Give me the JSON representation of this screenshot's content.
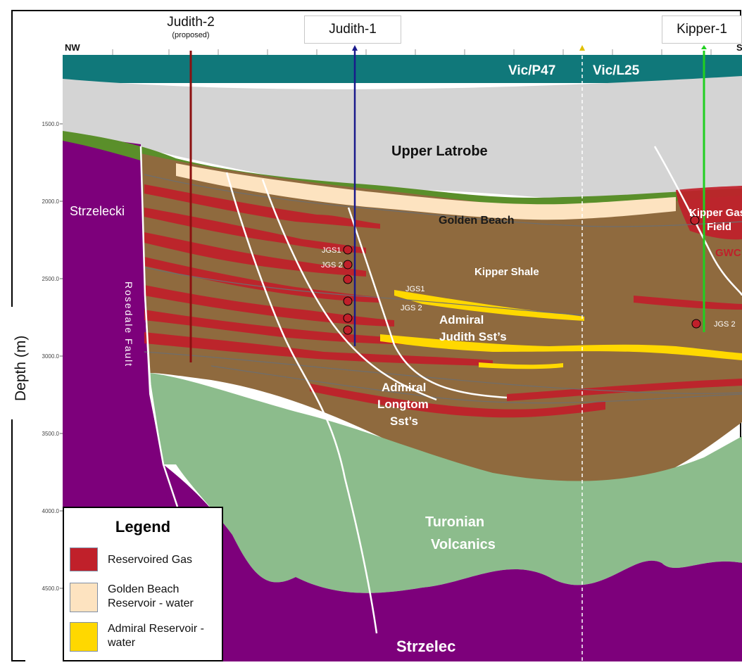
{
  "wells": {
    "judith2": {
      "name": "Judith-2",
      "note": "(proposed)"
    },
    "judith1": {
      "name": "Judith-1"
    },
    "kipper1": {
      "name": "Kipper-1"
    }
  },
  "orientation": {
    "left": "NW",
    "right": "S"
  },
  "axis": {
    "label": "Depth (m)",
    "ticks": [
      "1500.0",
      "2000.0",
      "2500.0",
      "3000.0",
      "3500.0",
      "4000.0",
      "4500.0"
    ]
  },
  "permits": {
    "left": "Vic/P47",
    "right": "Vic/L25"
  },
  "units": {
    "upper_latrobe": "Upper Latrobe",
    "golden_beach": "Golden Beach",
    "kipper_shale": "Kipper Shale",
    "admiral_judith": [
      "Admiral",
      "Judith Sst’s"
    ],
    "admiral_longtom": [
      "Admiral",
      "Longtom",
      "Sst’s"
    ],
    "turonian": [
      "Turonian",
      "Volcanics"
    ],
    "strzelecki_left": "Strzelecki",
    "strzelecki_bottom": "Strzelec",
    "rosedale_fault": "Rosedale Fault",
    "kipper_field": [
      "Kipper Gas",
      "Field"
    ],
    "gwc": "GWC"
  },
  "gas_sands": {
    "jgs1": "JGS1",
    "jgs2": "JGS 2",
    "jgs2_kipper": "JGS 2"
  },
  "legend": {
    "title": "Legend",
    "items": [
      {
        "label": "Reservoired Gas",
        "color": "#c0202a"
      },
      {
        "label": "Golden Beach Reservoir - water",
        "color": "#fde3c0"
      },
      {
        "label": "Admiral Reservoir - water",
        "color": "#ffd800"
      }
    ]
  },
  "colors": {
    "sea": "#10787a",
    "upper_latrobe": "#d4d4d4",
    "shale": "#8f6a3e",
    "volcanics": "#8cbc8c",
    "basement": "#7d007b",
    "gas": "#c0202a",
    "admiral_water": "#ffd800",
    "golden_beach_water": "#fde3c0",
    "judith2_well": "#8b1010",
    "judith1_well": "#1a1a8c",
    "kipper1_well": "#20d020"
  }
}
